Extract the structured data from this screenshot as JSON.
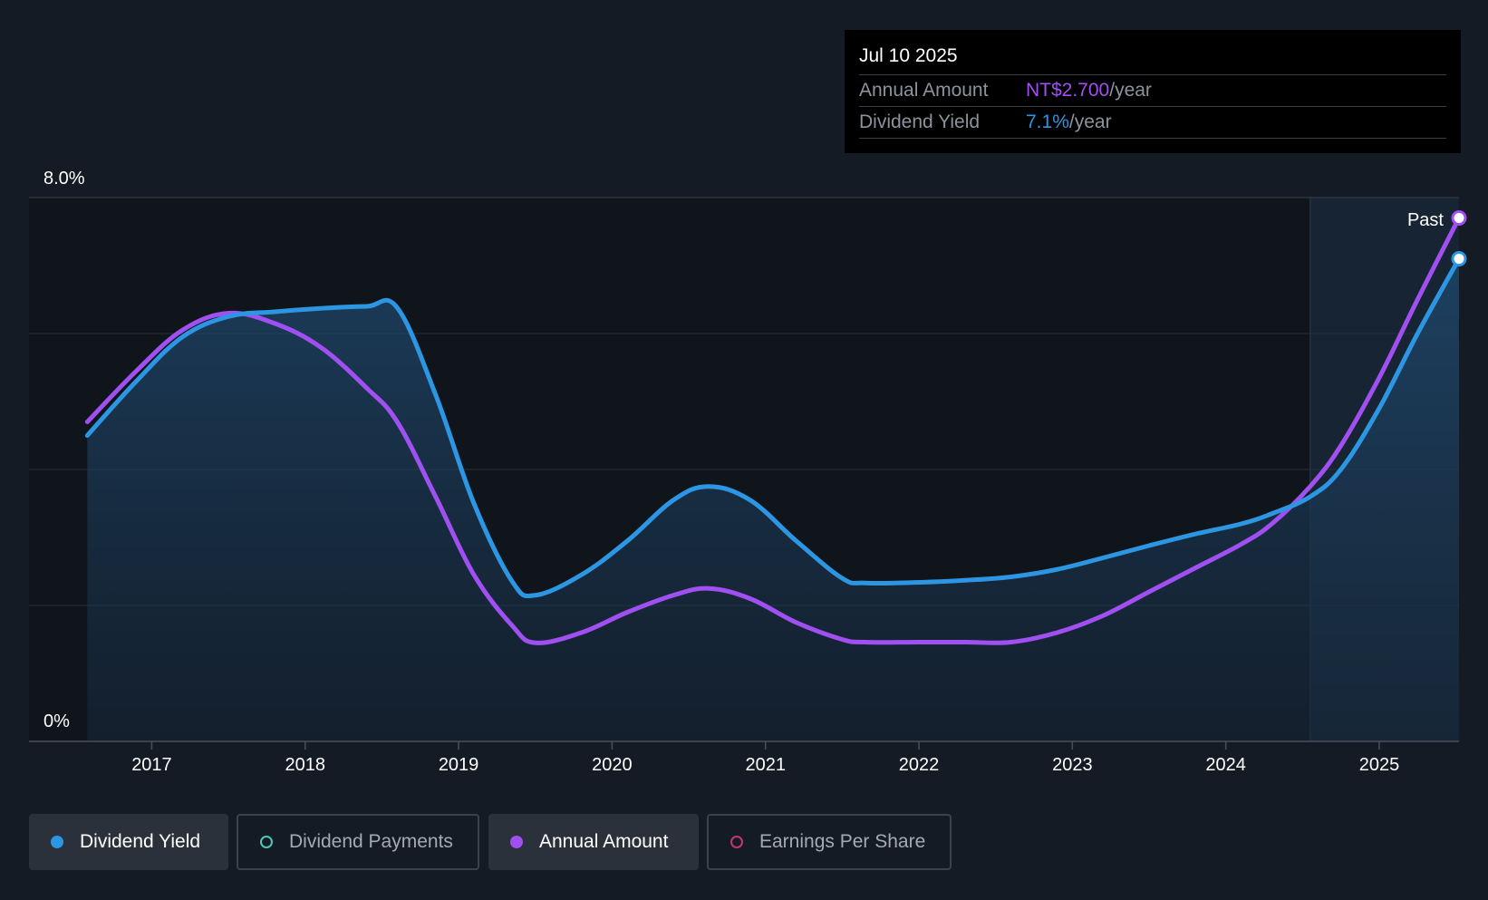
{
  "chart_data": {
    "type": "line",
    "x": [
      2016.58,
      2016.9,
      2017.2,
      2017.5,
      2017.8,
      2018.1,
      2018.4,
      2018.6,
      2018.85,
      2019.1,
      2019.35,
      2019.5,
      2019.8,
      2020.1,
      2020.4,
      2020.63,
      2020.9,
      2021.2,
      2021.5,
      2021.65,
      2022.0,
      2022.3,
      2022.6,
      2022.9,
      2023.2,
      2023.5,
      2023.8,
      2024.1,
      2024.3,
      2024.55,
      2024.75,
      2025.0,
      2025.25,
      2025.52
    ],
    "series": [
      {
        "name": "Dividend Yield",
        "color": "#2d96e3",
        "values": [
          4.5,
          5.3,
          5.95,
          6.25,
          6.32,
          6.37,
          6.4,
          6.38,
          5.1,
          3.5,
          2.35,
          2.15,
          2.45,
          2.95,
          3.55,
          3.75,
          3.55,
          2.95,
          2.4,
          2.33,
          2.34,
          2.37,
          2.42,
          2.53,
          2.7,
          2.88,
          3.05,
          3.2,
          3.35,
          3.6,
          4.0,
          4.9,
          6.0,
          7.1
        ]
      },
      {
        "name": "Annual Amount",
        "color": "#a04ff0",
        "values": [
          4.7,
          5.45,
          6.05,
          6.3,
          6.15,
          5.8,
          5.2,
          4.7,
          3.6,
          2.45,
          1.7,
          1.45,
          1.6,
          1.9,
          2.15,
          2.25,
          2.1,
          1.75,
          1.5,
          1.46,
          1.46,
          1.46,
          1.46,
          1.6,
          1.85,
          2.2,
          2.55,
          2.9,
          3.2,
          3.75,
          4.35,
          5.35,
          6.5,
          7.7
        ]
      }
    ],
    "x_ticks": [
      2017,
      2018,
      2019,
      2020,
      2021,
      2022,
      2023,
      2024,
      2025
    ],
    "x_tick_labels": [
      "2017",
      "2018",
      "2019",
      "2020",
      "2021",
      "2022",
      "2023",
      "2024",
      "2025"
    ],
    "xlim": [
      2016.2,
      2025.52
    ],
    "ylim": [
      0,
      8
    ],
    "y_tick_labels": [
      "0%",
      "8.0%"
    ],
    "grid": true,
    "past_label": "Past",
    "past_start": 2024.55,
    "legend": [
      {
        "label": "Dividend Yield",
        "color": "#2d96e3",
        "state": "active",
        "marker": "filled"
      },
      {
        "label": "Dividend Payments",
        "color": "#4ec7b7",
        "state": "inactive",
        "marker": "hollow"
      },
      {
        "label": "Annual Amount",
        "color": "#a04ff0",
        "state": "active",
        "marker": "filled"
      },
      {
        "label": "Earnings Per Share",
        "color": "#c0386f",
        "state": "inactive",
        "marker": "hollow"
      }
    ]
  },
  "tooltip": {
    "date": "Jul 10 2025",
    "rows": [
      {
        "label": "Annual Amount",
        "value": "NT$2.700",
        "unit": "/year",
        "color": "#a04ff0"
      },
      {
        "label": "Dividend Yield",
        "value": "7.1%",
        "unit": "/year",
        "color": "#2d96e3"
      }
    ]
  }
}
